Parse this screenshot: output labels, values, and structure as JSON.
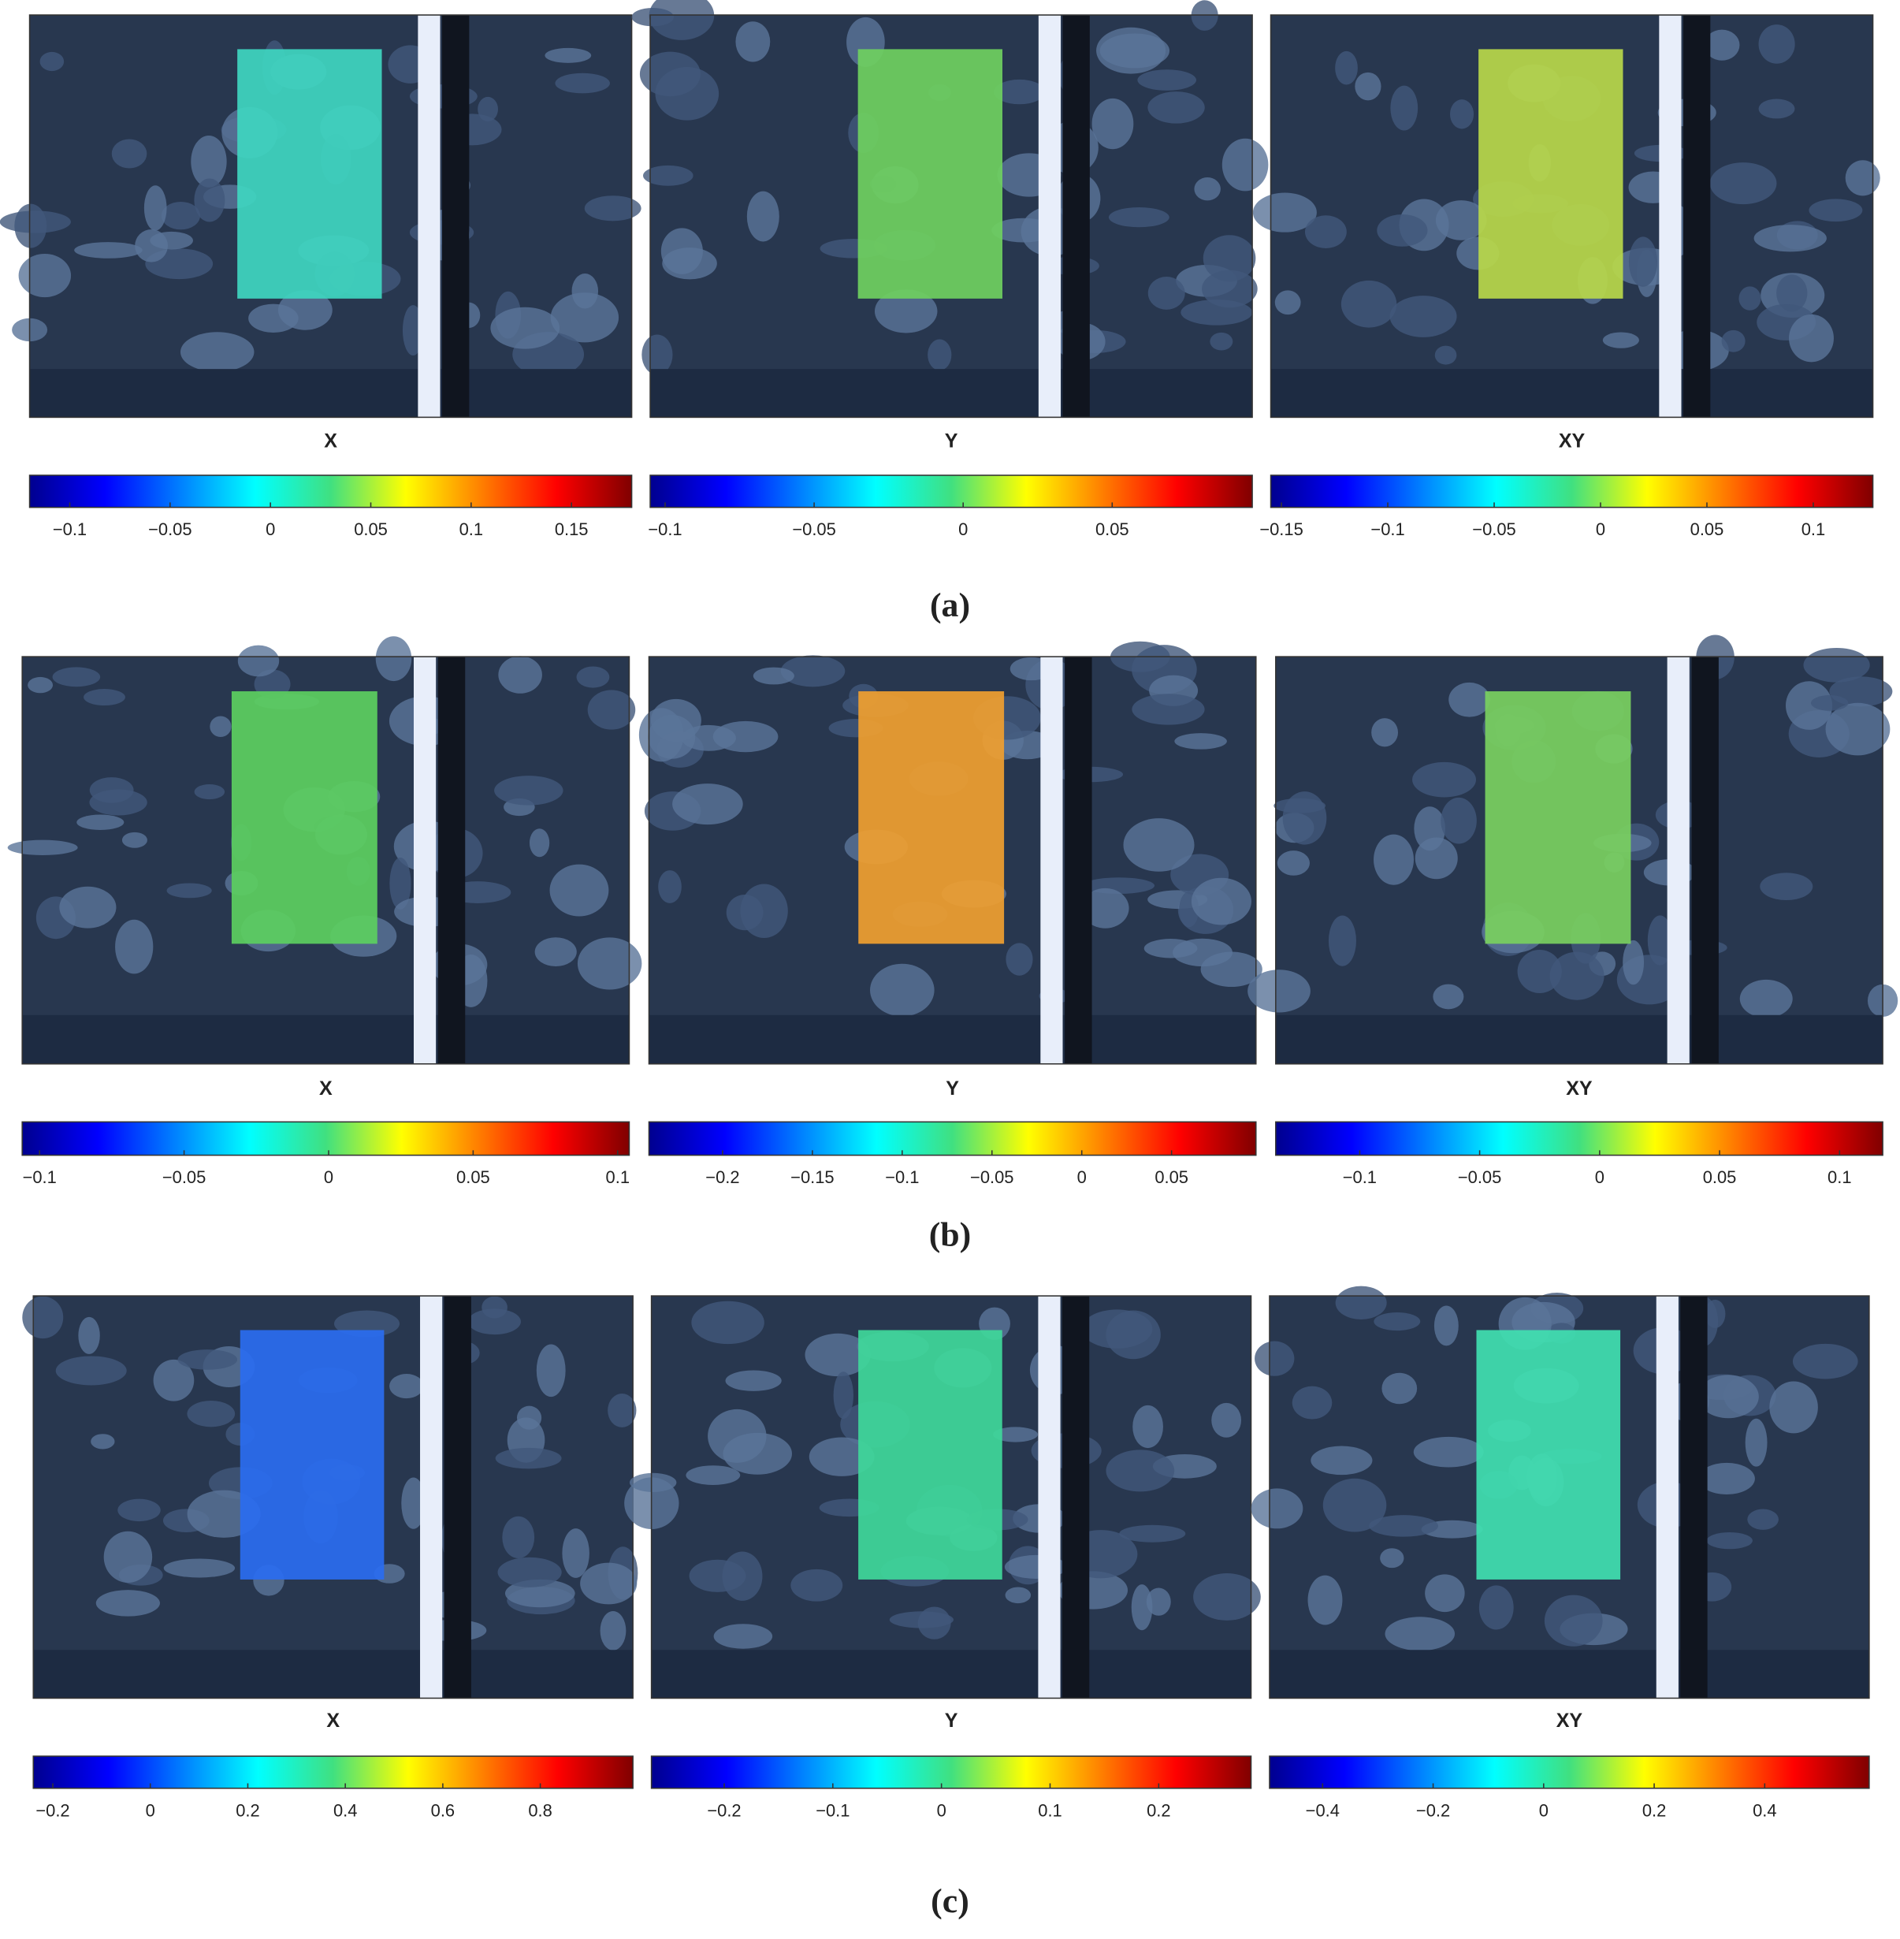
{
  "figure": {
    "rows": [
      {
        "label": "(a)",
        "panels": [
          {
            "title": "X",
            "colorbar": {
              "lim": [
                -0.12,
                0.18
              ],
              "ticks": [
                {
                  "value": -0.1,
                  "label": "−0.1"
                },
                {
                  "value": -0.05,
                  "label": "−0.05"
                },
                0,
                0.05,
                0.1,
                0.15
              ]
            }
          },
          {
            "title": "Y",
            "colorbar": {
              "lim": [
                -0.105,
                0.097
              ],
              "ticks": [
                {
                  "value": -0.1,
                  "label": "−0.1"
                },
                {
                  "value": -0.05,
                  "label": "−0.05"
                },
                0,
                0.05
              ]
            }
          },
          {
            "title": "XY",
            "colorbar": {
              "lim": [
                -0.155,
                0.128
              ],
              "ticks": [
                {
                  "value": -0.15,
                  "label": "−0.15"
                },
                {
                  "value": -0.1,
                  "label": "−0.1"
                },
                {
                  "value": -0.05,
                  "label": "−0.05"
                },
                0,
                0.05,
                0.1
              ]
            }
          }
        ]
      },
      {
        "label": "(b)",
        "panels": [
          {
            "title": "X",
            "colorbar": {
              "lim": [
                -0.106,
                0.104
              ],
              "ticks": [
                {
                  "value": -0.1,
                  "label": "−0.1"
                },
                {
                  "value": -0.05,
                  "label": "−0.05"
                },
                0,
                0.05,
                0.1
              ]
            }
          },
          {
            "title": "Y",
            "colorbar": {
              "lim": [
                -0.241,
                0.097
              ],
              "ticks": [
                {
                  "value": -0.2,
                  "label": "−0.2"
                },
                {
                  "value": -0.15,
                  "label": "−0.15"
                },
                {
                  "value": -0.1,
                  "label": "−0.1"
                },
                {
                  "value": -0.05,
                  "label": "−0.05"
                },
                0,
                0.05
              ]
            }
          },
          {
            "title": "XY",
            "colorbar": {
              "lim": [
                -0.135,
                0.118
              ],
              "ticks": [
                {
                  "value": -0.1,
                  "label": "−0.1"
                },
                {
                  "value": -0.05,
                  "label": "−0.05"
                },
                0,
                0.05,
                0.1
              ]
            }
          }
        ]
      },
      {
        "label": "(c)",
        "panels": [
          {
            "title": "X",
            "colorbar": {
              "lim": [
                -0.24,
                0.99
              ],
              "ticks": [
                {
                  "value": -0.2,
                  "label": "−0.2"
                },
                0,
                0.2,
                0.4,
                0.6,
                0.8
              ]
            }
          },
          {
            "title": "Y",
            "colorbar": {
              "lim": [
                -0.267,
                0.285
              ],
              "ticks": [
                {
                  "value": -0.2,
                  "label": "−0.2"
                },
                {
                  "value": -0.1,
                  "label": "−0.1"
                },
                0,
                0.1,
                0.2
              ]
            }
          },
          {
            "title": "XY",
            "colorbar": {
              "lim": [
                -0.496,
                0.589
              ],
              "ticks": [
                {
                  "value": -0.4,
                  "label": "−0.4"
                },
                {
                  "value": -0.2,
                  "label": "−0.2"
                },
                0,
                0.2,
                0.4
              ]
            }
          }
        ]
      }
    ]
  }
}
